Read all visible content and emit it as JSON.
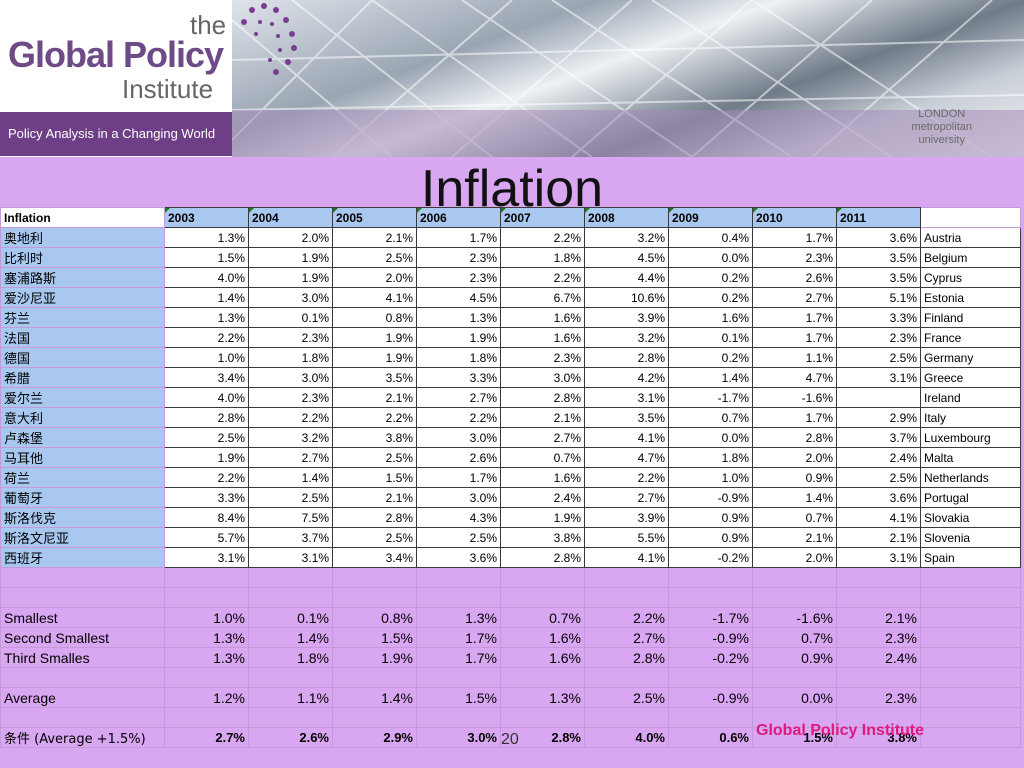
{
  "banner": {
    "logo_the": "the",
    "logo_main": "Global Policy",
    "logo_institute": "Institute",
    "tagline": "Policy Analysis in a Changing World",
    "univ_line1": "LONDON",
    "univ_line2": "metropolitan",
    "univ_line3": "university"
  },
  "title": "Inflation",
  "table": {
    "corner": "Inflation",
    "years": [
      "2003",
      "2004",
      "2005",
      "2006",
      "2007",
      "2008",
      "2009",
      "2010",
      "2011"
    ],
    "rows": [
      {
        "cn": "奥地利",
        "en": "Austria",
        "v": [
          "1.3%",
          "2.0%",
          "2.1%",
          "1.7%",
          "2.2%",
          "3.2%",
          "0.4%",
          "1.7%",
          "3.6%"
        ]
      },
      {
        "cn": "比利时",
        "en": "Belgium",
        "v": [
          "1.5%",
          "1.9%",
          "2.5%",
          "2.3%",
          "1.8%",
          "4.5%",
          "0.0%",
          "2.3%",
          "3.5%"
        ]
      },
      {
        "cn": "塞浦路斯",
        "en": "Cyprus",
        "v": [
          "4.0%",
          "1.9%",
          "2.0%",
          "2.3%",
          "2.2%",
          "4.4%",
          "0.2%",
          "2.6%",
          "3.5%"
        ]
      },
      {
        "cn": "爱沙尼亚",
        "en": "Estonia",
        "v": [
          "1.4%",
          "3.0%",
          "4.1%",
          "4.5%",
          "6.7%",
          "10.6%",
          "0.2%",
          "2.7%",
          "5.1%"
        ]
      },
      {
        "cn": "芬兰",
        "en": "Finland",
        "v": [
          "1.3%",
          "0.1%",
          "0.8%",
          "1.3%",
          "1.6%",
          "3.9%",
          "1.6%",
          "1.7%",
          "3.3%"
        ]
      },
      {
        "cn": "法国",
        "en": "France",
        "v": [
          "2.2%",
          "2.3%",
          "1.9%",
          "1.9%",
          "1.6%",
          "3.2%",
          "0.1%",
          "1.7%",
          "2.3%"
        ]
      },
      {
        "cn": "德国",
        "en": "Germany",
        "v": [
          "1.0%",
          "1.8%",
          "1.9%",
          "1.8%",
          "2.3%",
          "2.8%",
          "0.2%",
          "1.1%",
          "2.5%"
        ]
      },
      {
        "cn": "希腊",
        "en": "Greece",
        "v": [
          "3.4%",
          "3.0%",
          "3.5%",
          "3.3%",
          "3.0%",
          "4.2%",
          "1.4%",
          "4.7%",
          "3.1%"
        ]
      },
      {
        "cn": "爱尔兰",
        "en": "Ireland",
        "v": [
          "4.0%",
          "2.3%",
          "2.1%",
          "2.7%",
          "2.8%",
          "3.1%",
          "-1.7%",
          "-1.6%",
          ""
        ]
      },
      {
        "cn": "意大利",
        "en": "Italy",
        "v": [
          "2.8%",
          "2.2%",
          "2.2%",
          "2.2%",
          "2.1%",
          "3.5%",
          "0.7%",
          "1.7%",
          "2.9%"
        ]
      },
      {
        "cn": "卢森堡",
        "en": "Luxembourg",
        "v": [
          "2.5%",
          "3.2%",
          "3.8%",
          "3.0%",
          "2.7%",
          "4.1%",
          "0.0%",
          "2.8%",
          "3.7%"
        ]
      },
      {
        "cn": "马耳他",
        "en": "Malta",
        "v": [
          "1.9%",
          "2.7%",
          "2.5%",
          "2.6%",
          "0.7%",
          "4.7%",
          "1.8%",
          "2.0%",
          "2.4%"
        ]
      },
      {
        "cn": "荷兰",
        "en": "Netherlands",
        "v": [
          "2.2%",
          "1.4%",
          "1.5%",
          "1.7%",
          "1.6%",
          "2.2%",
          "1.0%",
          "0.9%",
          "2.5%"
        ]
      },
      {
        "cn": "葡萄牙",
        "en": "Portugal",
        "v": [
          "3.3%",
          "2.5%",
          "2.1%",
          "3.0%",
          "2.4%",
          "2.7%",
          "-0.9%",
          "1.4%",
          "3.6%"
        ]
      },
      {
        "cn": "斯洛伐克",
        "en": "Slovakia",
        "v": [
          "8.4%",
          "7.5%",
          "2.8%",
          "4.3%",
          "1.9%",
          "3.9%",
          "0.9%",
          "0.7%",
          "4.1%"
        ]
      },
      {
        "cn": "斯洛文尼亚",
        "en": "Slovenia",
        "v": [
          "5.7%",
          "3.7%",
          "2.5%",
          "2.5%",
          "3.8%",
          "5.5%",
          "0.9%",
          "2.1%",
          "2.1%"
        ]
      },
      {
        "cn": "西班牙",
        "en": "Spain",
        "v": [
          "3.1%",
          "3.1%",
          "3.4%",
          "3.6%",
          "2.8%",
          "4.1%",
          "-0.2%",
          "2.0%",
          "3.1%"
        ]
      }
    ],
    "stats": [
      {
        "label": "Smallest",
        "v": [
          "1.0%",
          "0.1%",
          "0.8%",
          "1.3%",
          "0.7%",
          "2.2%",
          "-1.7%",
          "-1.6%",
          "2.1%"
        ]
      },
      {
        "label": "Second Smallest",
        "v": [
          "1.3%",
          "1.4%",
          "1.5%",
          "1.7%",
          "1.6%",
          "2.7%",
          "-0.9%",
          "0.7%",
          "2.3%"
        ]
      },
      {
        "label": "Third Smalles",
        "v": [
          "1.3%",
          "1.8%",
          "1.9%",
          "1.7%",
          "1.6%",
          "2.8%",
          "-0.2%",
          "0.9%",
          "2.4%"
        ]
      }
    ],
    "average": {
      "label": "Average",
      "v": [
        "1.2%",
        "1.1%",
        "1.4%",
        "1.5%",
        "1.3%",
        "2.5%",
        "-0.9%",
        "0.0%",
        "2.3%"
      ]
    },
    "condition": {
      "label": "条件 (Average +1.5%)",
      "v": [
        "2.7%",
        "2.6%",
        "2.9%",
        "3.0%",
        "2.8%",
        "4.0%",
        "0.6%",
        "1.5%",
        "3.8%"
      ]
    }
  },
  "footer": {
    "page_number": "20",
    "brand": "Global Policy Institute"
  }
}
